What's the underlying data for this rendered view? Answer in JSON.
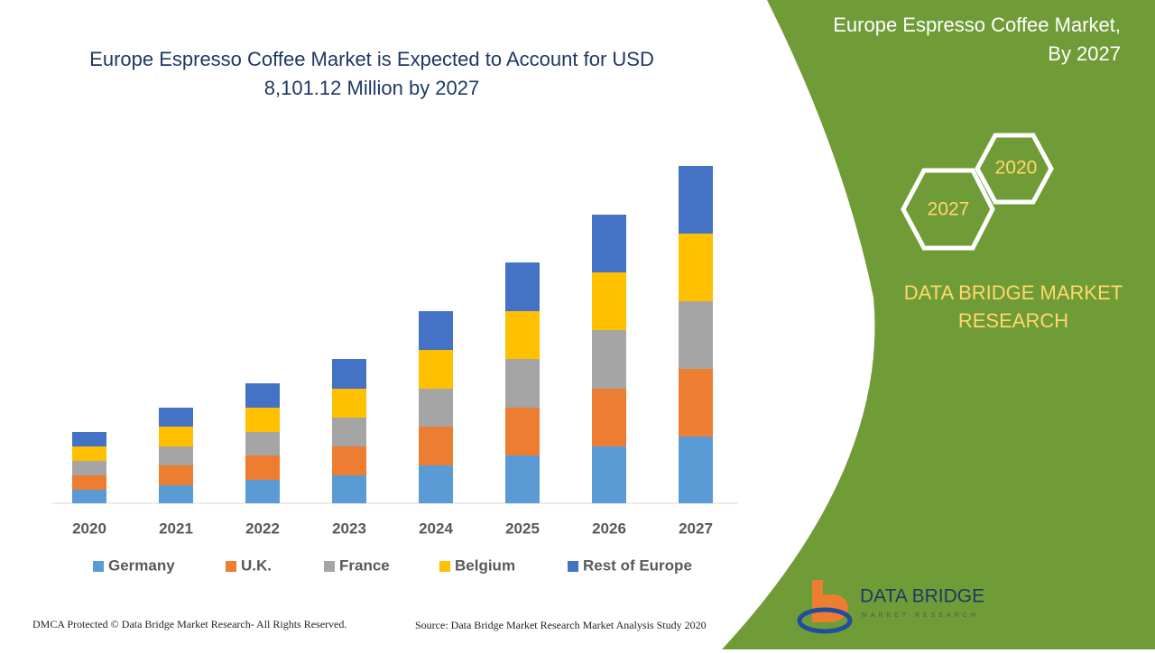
{
  "chart_data": {
    "type": "stacked_bar",
    "title": [
      "Europe Espresso Coffee Market is Expected to Account for USD",
      "8,101.12 Million by 2027"
    ],
    "categories": [
      "2020",
      "2021",
      "2022",
      "2023",
      "2024",
      "2025",
      "2026",
      "2027"
    ],
    "series": [
      {
        "name": "Germany",
        "color": "#5b9bd5",
        "values": [
          15,
          20,
          26,
          31,
          42,
          53,
          63,
          74
        ]
      },
      {
        "name": "U.K.",
        "color": "#ed7d31",
        "values": [
          16,
          22,
          27,
          32,
          43,
          53,
          64,
          75
        ]
      },
      {
        "name": "France",
        "color": "#a5a5a5",
        "values": [
          16,
          21,
          26,
          32,
          42,
          54,
          65,
          75
        ]
      },
      {
        "name": "Belgium",
        "color": "#ffc000",
        "values": [
          16,
          22,
          27,
          32,
          43,
          53,
          64,
          75
        ]
      },
      {
        "name": "Rest of Europe",
        "color": "#4472c4",
        "values": [
          16,
          21,
          27,
          33,
          43,
          54,
          64,
          75
        ]
      }
    ],
    "ylim": [
      0,
      400
    ]
  },
  "side": {
    "title": [
      "Europe Espresso Coffee Market,",
      "By 2027"
    ],
    "hexagons": [
      "2020",
      "2027"
    ],
    "brand": [
      "DATA BRIDGE MARKET",
      "RESEARCH"
    ]
  },
  "logo": {
    "name": "DATA BRIDGE",
    "sub": "MARKET RESEARCH"
  },
  "footer": {
    "left": "DMCA Protected © Data Bridge Market Research- All Rights Reserved.",
    "right": "Source: Data Bridge Market Research Market Analysis Study 2020"
  }
}
